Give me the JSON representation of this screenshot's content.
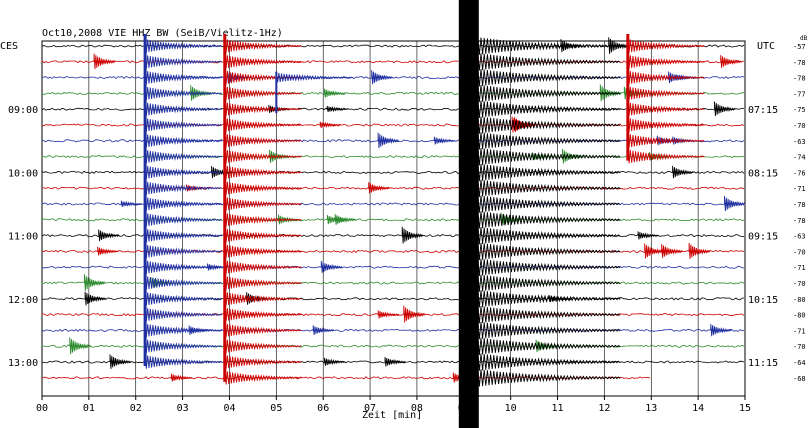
{
  "chart_data": {
    "type": "line",
    "title": "Oct10,2008   VIE HHZ BW (SeiB/Vielitz-1Hz)",
    "left_tz_label": "CES",
    "right_tz_label": "UTC",
    "right_extra_label": "dB",
    "xlabel": "Zeit [min]",
    "x_ticks": [
      "00",
      "01",
      "02",
      "03",
      "04",
      "05",
      "06",
      "07",
      "08",
      "09",
      "10",
      "11",
      "12",
      "13",
      "14",
      "15"
    ],
    "xlim": [
      0,
      15
    ],
    "left_time_labels": [
      "09:00",
      "10:00",
      "11:00",
      "12:00",
      "13:00"
    ],
    "right_time_labels": [
      "07:15",
      "08:15",
      "09:15",
      "10:15",
      "11:15"
    ],
    "right_db_values": [
      "-57",
      "-78",
      "-78",
      "-77",
      "-75",
      "-70",
      "-63",
      "-74",
      "-76",
      "-71",
      "-78",
      "-78",
      "-63",
      "-70",
      "-71",
      "-70",
      "-80",
      "-80",
      "-71",
      "-70",
      "-64",
      "-68"
    ],
    "trace_colors": [
      "#000000",
      "#cc0000",
      "#1f2fa0",
      "#2e8b2e"
    ],
    "traces_per_hour": 4,
    "trace_count": 22,
    "events": [
      {
        "x_min": 2.2,
        "trace_start": 0,
        "trace_end": 20,
        "color": "#1f2fa0",
        "amplitude": "large"
      },
      {
        "x_min": 3.9,
        "trace_start": 0,
        "trace_end": 21,
        "color": "#cc0000",
        "amplitude": "large"
      },
      {
        "x_min": 5.0,
        "trace_start": 2,
        "trace_end": 4,
        "color": "#1f2fa0",
        "amplitude": "medium"
      },
      {
        "x_min": 9.0,
        "trace_start": 0,
        "trace_end": 21,
        "color": "#000000",
        "amplitude": "saturated"
      },
      {
        "x_min": 12.5,
        "trace_start": 0,
        "trace_end": 7,
        "color": "#cc0000",
        "amplitude": "large"
      }
    ]
  }
}
